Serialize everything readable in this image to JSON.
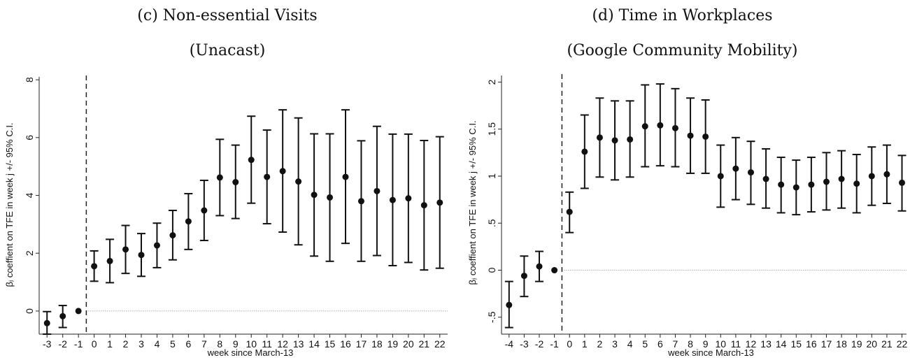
{
  "panels": [
    {
      "title": "(c) Non-essential Visits",
      "subtitle": "(Unacast)"
    },
    {
      "title": "(d) Time in Workplaces",
      "subtitle": "(Google Community Mobility)"
    }
  ],
  "chart_data": [
    {
      "type": "scatter",
      "style": "coefficient point estimates with 95% confidence interval error bars",
      "title": "(c) Non-essential Visits",
      "subtitle": "(Unacast)",
      "xlabel": "week since March-13",
      "ylabel": "βⱼ coeffient on TFE in week j +/- 95% C.I.",
      "xlim": [
        -3.5,
        22.5
      ],
      "ylim": [
        -0.8,
        8.1
      ],
      "yticks": [
        0,
        2,
        4,
        6,
        8
      ],
      "ytick_labels": [
        "0",
        "2",
        "4",
        "6",
        "8"
      ],
      "reference_vline": -0.5,
      "reference_hline": 0,
      "x": [
        -3,
        -2,
        -1,
        0,
        1,
        2,
        3,
        4,
        5,
        6,
        7,
        8,
        9,
        10,
        11,
        12,
        13,
        14,
        15,
        16,
        17,
        18,
        19,
        20,
        21,
        22
      ],
      "y": [
        -0.42,
        -0.18,
        0.0,
        1.55,
        1.73,
        2.13,
        1.94,
        2.27,
        2.62,
        3.1,
        3.48,
        4.62,
        4.46,
        5.23,
        4.64,
        4.84,
        4.48,
        4.02,
        3.93,
        4.64,
        3.8,
        4.15,
        3.84,
        3.9,
        3.66,
        3.75
      ],
      "ci_low": [
        -0.8,
        -0.57,
        0.0,
        1.03,
        0.98,
        1.3,
        1.2,
        1.5,
        1.77,
        2.13,
        2.44,
        3.3,
        3.2,
        3.73,
        3.02,
        2.73,
        2.29,
        1.9,
        1.72,
        2.34,
        1.72,
        1.92,
        1.57,
        1.68,
        1.42,
        1.48
      ],
      "ci_high": [
        -0.02,
        0.19,
        0.0,
        2.08,
        2.48,
        2.96,
        2.68,
        3.04,
        3.48,
        4.06,
        4.52,
        5.94,
        5.74,
        6.74,
        6.26,
        6.96,
        6.68,
        6.13,
        6.13,
        6.96,
        5.89,
        6.39,
        6.12,
        6.12,
        5.9,
        6.03
      ],
      "grid": false,
      "legend": "none"
    },
    {
      "type": "scatter",
      "style": "coefficient point estimates with 95% confidence interval error bars",
      "title": "(d) Time in Workplaces",
      "subtitle": "(Google Community Mobility)",
      "xlabel": "week since March-13",
      "ylabel": "βⱼ coeffient on TFE in week j +/- 95% C.I.",
      "xlim": [
        -4.5,
        22.3
      ],
      "ylim": [
        -0.68,
        2.07
      ],
      "yticks": [
        -0.5,
        0,
        0.5,
        1,
        1.5,
        2
      ],
      "ytick_labels": [
        "-.5",
        "0",
        ".5",
        "1",
        "1.5",
        "2"
      ],
      "reference_vline": -0.5,
      "reference_hline": 0,
      "x": [
        -4,
        -3,
        -2,
        -1,
        0,
        1,
        2,
        3,
        4,
        5,
        6,
        7,
        8,
        9,
        10,
        11,
        12,
        13,
        14,
        15,
        16,
        17,
        18,
        19,
        20,
        21,
        22
      ],
      "y": [
        -0.37,
        -0.06,
        0.04,
        0.0,
        0.62,
        1.26,
        1.41,
        1.38,
        1.39,
        1.53,
        1.54,
        1.51,
        1.43,
        1.42,
        1.0,
        1.08,
        1.04,
        0.97,
        0.91,
        0.88,
        0.91,
        0.94,
        0.97,
        0.92,
        1.0,
        1.02,
        0.93
      ],
      "ci_low": [
        -0.61,
        -0.28,
        -0.12,
        0.0,
        0.4,
        0.87,
        0.99,
        0.96,
        0.99,
        1.1,
        1.11,
        1.1,
        1.03,
        1.03,
        0.67,
        0.75,
        0.7,
        0.66,
        0.61,
        0.59,
        0.62,
        0.64,
        0.66,
        0.61,
        0.69,
        0.71,
        0.63
      ],
      "ci_high": [
        -0.12,
        0.15,
        0.2,
        0.0,
        0.83,
        1.65,
        1.83,
        1.8,
        1.8,
        1.97,
        1.98,
        1.93,
        1.83,
        1.81,
        1.33,
        1.41,
        1.37,
        1.29,
        1.2,
        1.17,
        1.2,
        1.25,
        1.27,
        1.23,
        1.31,
        1.33,
        1.22
      ],
      "grid": false,
      "legend": "none"
    }
  ]
}
